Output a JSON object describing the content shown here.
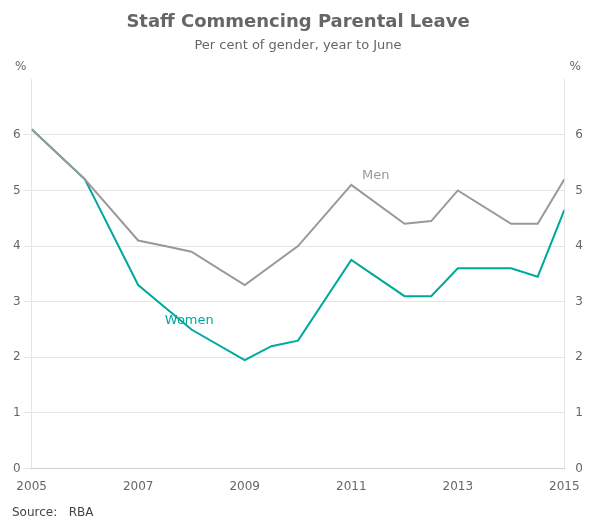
{
  "chart_data": {
    "type": "line",
    "title": "Staff Commencing Parental Leave",
    "subtitle": "Per cent of gender, year to June",
    "source": "Source:   RBA",
    "series": [
      {
        "name": "Men",
        "color": "#999999",
        "x": [
          2005,
          2006,
          2007,
          2007.5,
          2008,
          2009,
          2010,
          2011,
          2012,
          2012.5,
          2013,
          2014,
          2014.5,
          2015
        ],
        "values": [
          6.1,
          5.2,
          4.1,
          4.0,
          3.9,
          3.3,
          4.0,
          5.1,
          4.4,
          4.45,
          5.0,
          4.4,
          4.4,
          5.2
        ]
      },
      {
        "name": "Women",
        "color": "#00A99D",
        "x": [
          2005,
          2006,
          2007,
          2008,
          2009,
          2009.5,
          2010,
          2011,
          2012,
          2012.5,
          2013,
          2014,
          2014.5,
          2015
        ],
        "values": [
          6.1,
          5.2,
          3.3,
          2.5,
          1.95,
          2.2,
          2.3,
          3.75,
          3.1,
          3.1,
          3.6,
          3.6,
          3.45,
          4.65
        ]
      }
    ],
    "annotations": [
      {
        "text": "Men",
        "x": 2011.2,
        "y": 5.15
      },
      {
        "text": "Women",
        "x": 2007.5,
        "y": 2.55
      }
    ],
    "xlim": [
      2005,
      2015
    ],
    "xticks": [
      2005,
      2007,
      2009,
      2011,
      2013,
      2015
    ],
    "ylim": [
      0,
      7
    ],
    "yticks": [
      0,
      1,
      2,
      3,
      4,
      5,
      6
    ],
    "y2lim": [
      0,
      7
    ],
    "y2ticks": [
      0,
      1,
      2,
      3,
      4,
      5,
      6
    ],
    "ylabel": "%",
    "y2label": "%",
    "grid": true
  }
}
